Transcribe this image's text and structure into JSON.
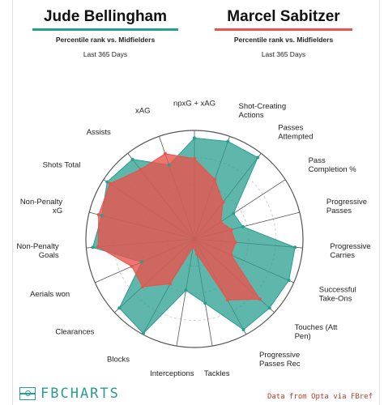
{
  "header": {
    "player1": {
      "name": "Jude Bellingham",
      "color": "#2a9d8f",
      "subtitle": "Percentile rank vs. Midfielders",
      "period": "Last 365 Days"
    },
    "player2": {
      "name": "Marcel Sabitzer",
      "color": "#e9544c",
      "subtitle": "Percentile rank vs. Midfielders",
      "period": "Last 365 Days"
    }
  },
  "footer": {
    "logo_text": "FBCHARTS",
    "logo_icon": "pitch-icon",
    "source": "Data from Opta via FBref"
  },
  "chart_data": {
    "type": "radar",
    "scale": [
      0,
      100
    ],
    "grid": true,
    "categories": [
      "npxG + xAG",
      "Shot-Creating Actions",
      "Passes Attempted",
      "Pass Completion %",
      "Progressive Passes",
      "Progressive Carries",
      "Successful Take-Ons",
      "Touches (Att Pen)",
      "Progressive Passes Rec",
      "Tackles",
      "Interceptions",
      "Blocks",
      "Clearances",
      "Aerials won",
      "Non-Penalty Goals",
      "Non-Penalty xG",
      "Shots Total",
      "Assists",
      "xAG"
    ],
    "series": [
      {
        "name": "Jude Bellingham",
        "color": "#2a9d8f",
        "values": [
          93,
          95,
          95,
          43,
          46,
          93,
          95,
          94,
          95,
          60,
          48,
          99,
          94,
          53,
          94,
          88,
          96,
          93,
          72
        ]
      },
      {
        "name": "Marcel Sabitzer",
        "color": "#e9544c",
        "values": [
          74,
          58,
          43,
          29,
          35,
          38,
          37,
          82,
          64,
          14,
          7,
          47,
          65,
          63,
          89,
          91,
          93,
          81,
          83
        ]
      }
    ]
  }
}
